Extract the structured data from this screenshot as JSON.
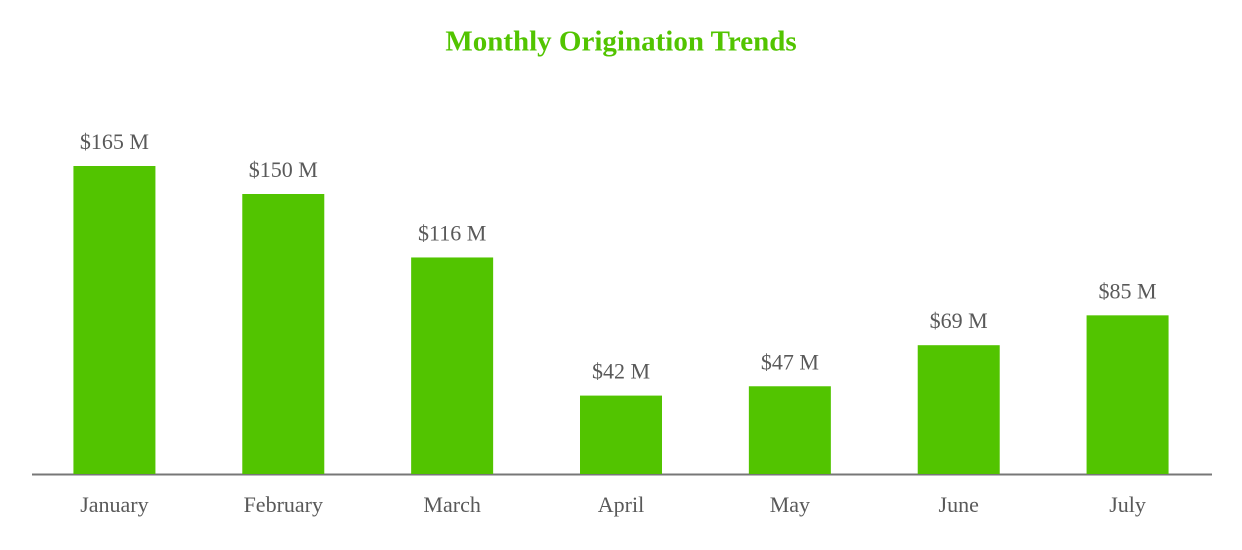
{
  "chart_data": {
    "type": "bar",
    "title": "Monthly Origination Trends",
    "categories": [
      "January",
      "February",
      "March",
      "April",
      "May",
      "June",
      "July"
    ],
    "values": [
      165,
      150,
      116,
      42,
      47,
      69,
      85
    ],
    "value_labels": [
      "$165 M",
      "$150 M",
      "$116 M",
      "$42 M",
      "$47 M",
      "$69 M",
      "$85 M"
    ],
    "color": "#52c400"
  }
}
